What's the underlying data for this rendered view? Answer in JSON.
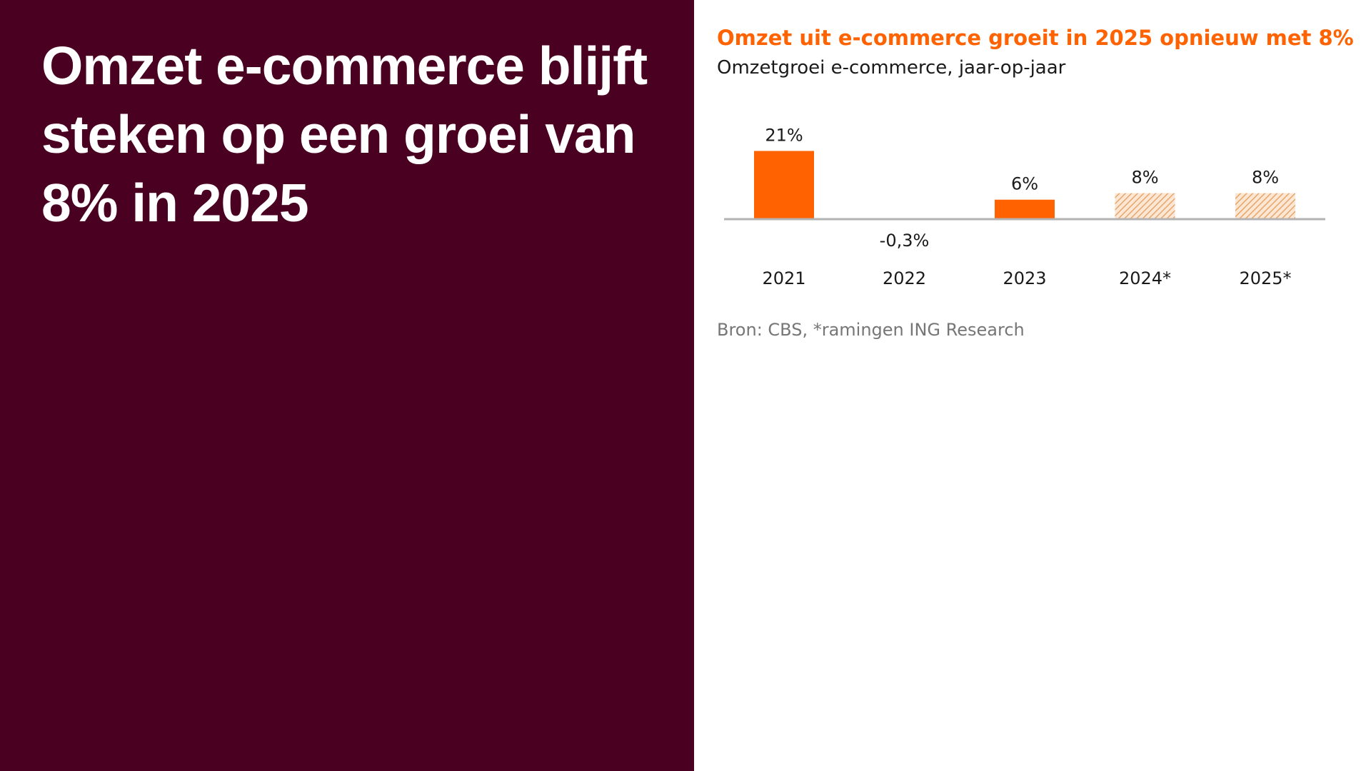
{
  "headline": "Omzet e-commerce blijft steken op een groei van 8% in 2025",
  "source_note": "Bron: CBS, *ramingen  ING Research",
  "colors": {
    "background_left": "#4a0020",
    "accent_orange": "#ff6200",
    "forecast_hatch": "#e8a56a",
    "axis": "#b3b3b3"
  },
  "chart_data": {
    "type": "bar",
    "title": "Omzet uit e-commerce groeit in 2025 opnieuw met 8%",
    "subtitle": "Omzetgroei e-commerce, jaar-op-jaar",
    "categories": [
      "2021",
      "2022",
      "2023",
      "2024*",
      "2025*"
    ],
    "values": [
      21,
      -0.3,
      6,
      8,
      8
    ],
    "data_labels": [
      "21%",
      "-0,3%",
      "6%",
      "8%",
      "8%"
    ],
    "forecast": [
      false,
      false,
      false,
      true,
      true
    ],
    "unit": "%",
    "ylim": [
      -1,
      23
    ],
    "grid": false,
    "legend": "none"
  }
}
